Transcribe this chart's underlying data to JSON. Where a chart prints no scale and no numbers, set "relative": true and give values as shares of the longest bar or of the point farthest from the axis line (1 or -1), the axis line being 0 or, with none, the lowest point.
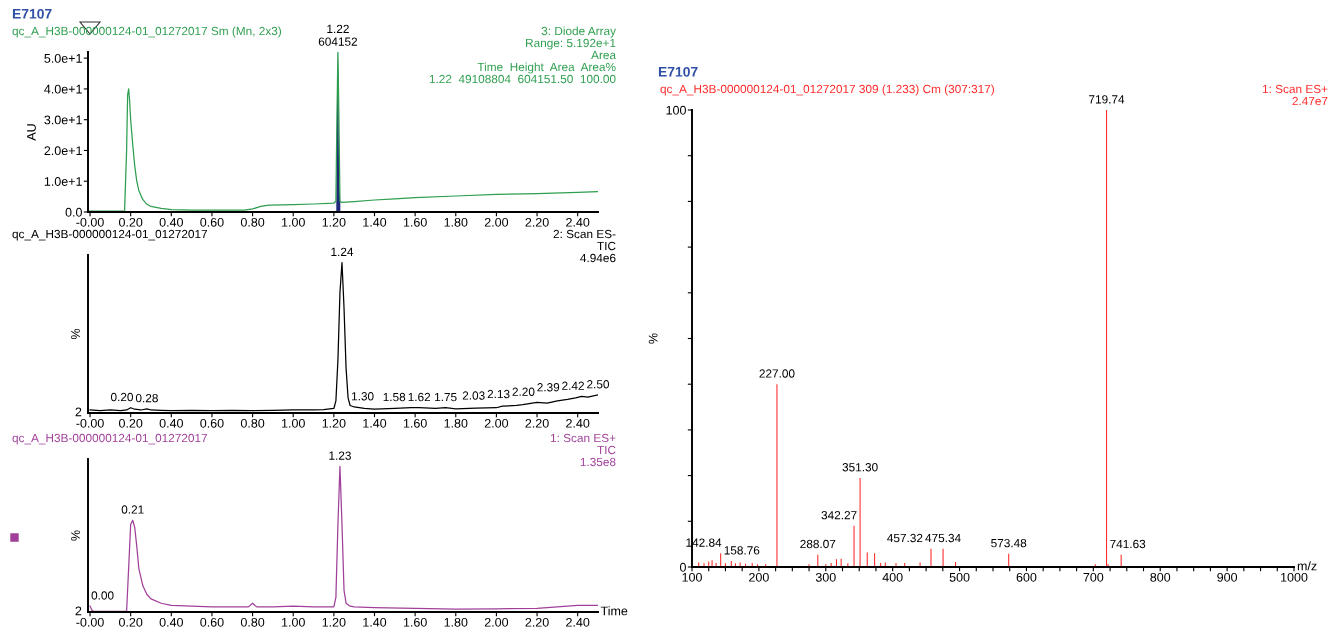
{
  "chart_data": [
    {
      "type": "line",
      "title": "E7107",
      "subtitle": "qc_A_H3B-000000124-01_01272017 Sm (Mn, 2x3)",
      "ylabel": "AU",
      "annotations": [
        "3: Diode Array",
        "Range: 5.192e+1",
        "Area",
        "Time  Height  Area  Area%",
        "1.22  49108804  604151.50  100.00",
        {
          "text": "1.22\n604152",
          "x": 1.22,
          "y": 51.9
        }
      ],
      "series": [
        {
          "type": "line",
          "color": "#2e9e4f",
          "x": [
            -0.01,
            0.0,
            0.1,
            0.17,
            0.18,
            0.185,
            0.19,
            0.195,
            0.2,
            0.21,
            0.22,
            0.23,
            0.24,
            0.26,
            0.28,
            0.3,
            0.35,
            0.4,
            0.5,
            0.6,
            0.7,
            0.76,
            0.8,
            0.84,
            0.88,
            0.95,
            1.0,
            1.1,
            1.2,
            1.21,
            1.215,
            1.22,
            1.225,
            1.23,
            1.24,
            1.3,
            1.4,
            1.5,
            1.6,
            1.8,
            2.0,
            2.2,
            2.4,
            2.5
          ],
          "values": [
            0.3,
            0.3,
            0.3,
            0.3,
            20,
            38,
            40,
            36,
            30,
            22,
            15,
            10,
            7,
            4,
            2.5,
            1.8,
            1.2,
            0.8,
            0.6,
            0.6,
            0.6,
            0.6,
            1.0,
            1.8,
            2.2,
            2.3,
            2.4,
            2.6,
            2.9,
            3.5,
            30,
            51.9,
            30,
            3.5,
            3.1,
            3.4,
            3.9,
            4.3,
            4.7,
            5.2,
            5.7,
            6.0,
            6.4,
            6.6
          ]
        },
        {
          "type": "area",
          "color": "#1f2a7a",
          "x": [
            1.212,
            1.216,
            1.22,
            1.222,
            1.226,
            1.232
          ],
          "values": [
            3,
            35,
            51.9,
            43,
            10,
            3
          ]
        }
      ],
      "xlim": [
        -0.01,
        2.5
      ],
      "ylim": [
        0,
        52
      ],
      "xticks": [
        {
          "value": 0,
          "label": "-0.00"
        },
        {
          "value": 0.2,
          "label": "0.20"
        },
        {
          "value": 0.4,
          "label": "0.40"
        },
        {
          "value": 0.6,
          "label": "0.60"
        },
        {
          "value": 0.8,
          "label": "0.80"
        },
        {
          "value": 1.0,
          "label": "1.00"
        },
        {
          "value": 1.2,
          "label": "1.20"
        },
        {
          "value": 1.4,
          "label": "1.40"
        },
        {
          "value": 1.6,
          "label": "1.60"
        },
        {
          "value": 1.8,
          "label": "1.80"
        },
        {
          "value": 2.0,
          "label": "2.00"
        },
        {
          "value": 2.2,
          "label": "2.20"
        },
        {
          "value": 2.4,
          "label": "2.40"
        }
      ],
      "yticks": [
        {
          "value": 0,
          "label": "0.0"
        },
        {
          "value": 10,
          "label": "1.0e+1"
        },
        {
          "value": 20,
          "label": "2.0e+1"
        },
        {
          "value": 30,
          "label": "3.0e+1"
        },
        {
          "value": 40,
          "label": "4.0e+1"
        },
        {
          "value": 50,
          "label": "5.0e+1"
        }
      ]
    },
    {
      "type": "line",
      "relative": true,
      "subtitle": "qc_A_H3B-000000124-01_01272017",
      "ylabel": "%",
      "annotations": [
        "2: Scan ES-",
        "TIC",
        "4.94e6",
        "2",
        {
          "text": "0.20",
          "x": 0.2,
          "y": 0.035
        },
        {
          "text": "0.28",
          "x": 0.28,
          "y": 0.028
        },
        {
          "text": "1.24",
          "x": 1.24,
          "y": 1.0
        },
        {
          "text": "1.30",
          "x": 1.3,
          "y": 0.04
        },
        {
          "text": "1.58",
          "x": 1.58,
          "y": 0.035
        },
        {
          "text": "1.62",
          "x": 1.62,
          "y": 0.035
        },
        {
          "text": "1.75",
          "x": 1.75,
          "y": 0.035
        },
        {
          "text": "2.03",
          "x": 2.03,
          "y": 0.045
        },
        {
          "text": "2.13",
          "x": 2.13,
          "y": 0.055
        },
        {
          "text": "2.20",
          "x": 2.2,
          "y": 0.07
        },
        {
          "text": "2.39",
          "x": 2.39,
          "y": 0.1
        },
        {
          "text": "2.42",
          "x": 2.42,
          "y": 0.11
        },
        {
          "text": "2.50",
          "x": 2.5,
          "y": 0.12
        }
      ],
      "series": [
        {
          "color": "#000000",
          "x": [
            0,
            0.05,
            0.1,
            0.15,
            0.18,
            0.2,
            0.22,
            0.25,
            0.28,
            0.3,
            0.35,
            0.4,
            0.5,
            0.6,
            0.7,
            0.8,
            0.9,
            1.0,
            1.1,
            1.15,
            1.2,
            1.21,
            1.22,
            1.23,
            1.24,
            1.25,
            1.26,
            1.27,
            1.28,
            1.3,
            1.35,
            1.4,
            1.5,
            1.58,
            1.62,
            1.7,
            1.75,
            1.8,
            1.9,
            2.0,
            2.03,
            2.1,
            2.13,
            2.2,
            2.25,
            2.3,
            2.35,
            2.39,
            2.42,
            2.45,
            2.5
          ],
          "values": [
            0.02,
            0.015,
            0.02,
            0.015,
            0.02,
            0.035,
            0.025,
            0.02,
            0.028,
            0.02,
            0.018,
            0.015,
            0.017,
            0.015,
            0.017,
            0.016,
            0.018,
            0.02,
            0.02,
            0.022,
            0.03,
            0.08,
            0.35,
            0.8,
            1.0,
            0.7,
            0.3,
            0.1,
            0.05,
            0.04,
            0.03,
            0.025,
            0.03,
            0.035,
            0.035,
            0.03,
            0.035,
            0.028,
            0.032,
            0.035,
            0.045,
            0.05,
            0.055,
            0.07,
            0.065,
            0.08,
            0.09,
            0.1,
            0.11,
            0.105,
            0.12
          ]
        }
      ],
      "xlim": [
        -0.01,
        2.5
      ],
      "xticks": [
        {
          "value": 0,
          "label": "-0.00"
        },
        {
          "value": 0.2,
          "label": "0.20"
        },
        {
          "value": 0.4,
          "label": "0.40"
        },
        {
          "value": 0.6,
          "label": "0.60"
        },
        {
          "value": 0.8,
          "label": "0.80"
        },
        {
          "value": 1.0,
          "label": "1.00"
        },
        {
          "value": 1.2,
          "label": "1.20"
        },
        {
          "value": 1.4,
          "label": "1.40"
        },
        {
          "value": 1.6,
          "label": "1.60"
        },
        {
          "value": 1.8,
          "label": "1.80"
        },
        {
          "value": 2.0,
          "label": "2.00"
        },
        {
          "value": 2.2,
          "label": "2.20"
        },
        {
          "value": 2.4,
          "label": "2.40"
        }
      ]
    },
    {
      "type": "line",
      "relative": true,
      "subtitle": "qc_A_H3B-000000124-01_01272017",
      "ylabel": "%",
      "xlabel": "Time",
      "annotations": [
        "1: Scan ES+",
        "TIC",
        "1.35e8",
        "2",
        {
          "text": "0.00",
          "x": 0.0,
          "y": 0.04
        },
        {
          "text": "0.21",
          "x": 0.21,
          "y": 0.63
        },
        {
          "text": "1.23",
          "x": 1.23,
          "y": 1.0
        }
      ],
      "series": [
        {
          "color": "#a0409a",
          "x": [
            0,
            0.01,
            0.02,
            0.1,
            0.18,
            0.19,
            0.2,
            0.21,
            0.22,
            0.23,
            0.24,
            0.26,
            0.28,
            0.3,
            0.35,
            0.4,
            0.5,
            0.6,
            0.7,
            0.78,
            0.8,
            0.82,
            0.9,
            1.0,
            1.1,
            1.2,
            1.21,
            1.22,
            1.23,
            1.24,
            1.25,
            1.26,
            1.28,
            1.3,
            1.4,
            1.6,
            1.8,
            2.0,
            2.2,
            2.3,
            2.4,
            2.5
          ],
          "values": [
            0.04,
            0.01,
            0.005,
            0.005,
            0.005,
            0.3,
            0.6,
            0.63,
            0.58,
            0.45,
            0.3,
            0.18,
            0.12,
            0.09,
            0.06,
            0.045,
            0.04,
            0.035,
            0.035,
            0.035,
            0.06,
            0.035,
            0.035,
            0.04,
            0.035,
            0.035,
            0.1,
            0.6,
            1.0,
            0.6,
            0.15,
            0.06,
            0.04,
            0.035,
            0.03,
            0.025,
            0.02,
            0.022,
            0.025,
            0.035,
            0.045,
            0.045
          ]
        }
      ],
      "xlim": [
        -0.01,
        2.5
      ],
      "xticks": [
        {
          "value": 0,
          "label": "-0.00"
        },
        {
          "value": 0.2,
          "label": "0.20"
        },
        {
          "value": 0.4,
          "label": "0.40"
        },
        {
          "value": 0.6,
          "label": "0.60"
        },
        {
          "value": 0.8,
          "label": "0.80"
        },
        {
          "value": 1.0,
          "label": "1.00"
        },
        {
          "value": 1.2,
          "label": "1.20"
        },
        {
          "value": 1.4,
          "label": "1.40"
        },
        {
          "value": 1.6,
          "label": "1.60"
        },
        {
          "value": 1.8,
          "label": "1.80"
        },
        {
          "value": 2.0,
          "label": "2.00"
        },
        {
          "value": 2.2,
          "label": "2.20"
        },
        {
          "value": 2.4,
          "label": "2.40"
        }
      ]
    },
    {
      "type": "bar",
      "title": "E7107",
      "subtitle": "qc_A_H3B-000000124-01_01272017 309 (1.233) Cm (307:317)",
      "ylabel": "%",
      "xlabel": "m/z",
      "annotations": [
        "1: Scan ES+",
        "2.47e7",
        {
          "text": "142.84",
          "x": 142.84,
          "y": 3.0
        },
        {
          "text": "158.76",
          "x": 158.76,
          "y": 1.3
        },
        {
          "text": "227.00",
          "x": 227.0,
          "y": 40
        },
        {
          "text": "288.07",
          "x": 288.07,
          "y": 2.7
        },
        {
          "text": "342.27",
          "x": 342.27,
          "y": 9.0
        },
        {
          "text": "351.30",
          "x": 351.3,
          "y": 19.5
        },
        {
          "text": "457.32",
          "x": 457.32,
          "y": 4.0
        },
        {
          "text": "475.34",
          "x": 475.34,
          "y": 4.0
        },
        {
          "text": "573.48",
          "x": 573.48,
          "y": 2.9
        },
        {
          "text": "719.74",
          "x": 719.74,
          "y": 100
        },
        {
          "text": "741.63",
          "x": 741.63,
          "y": 2.7
        }
      ],
      "series": [
        {
          "color": "#ff2a2a",
          "x": [
            110,
            118,
            125,
            130,
            136,
            142.84,
            150,
            158.76,
            165,
            172,
            180,
            190,
            198,
            210,
            227.0,
            275,
            288.07,
            300,
            308,
            316,
            323,
            333,
            342.27,
            351.3,
            362,
            373,
            382,
            389,
            405,
            418,
            441,
            457.32,
            475.34,
            494,
            573.48,
            703,
            719.74,
            722,
            741.63
          ],
          "values": [
            1.0,
            0.8,
            1.2,
            1.5,
            0.9,
            3.0,
            0.8,
            1.3,
            0.8,
            1.0,
            0.7,
            0.9,
            0.6,
            0.6,
            40,
            0.6,
            2.7,
            0.6,
            0.9,
            1.7,
            1.8,
            0.8,
            9.0,
            19.5,
            3.2,
            3.0,
            0.9,
            1.0,
            0.8,
            0.9,
            1.0,
            4.0,
            4.0,
            1.1,
            2.9,
            0.6,
            100,
            0.6,
            2.7
          ]
        }
      ],
      "xlim": [
        100,
        1000
      ],
      "ylim": [
        0,
        100
      ],
      "xticks": [
        100,
        {
          "value": 125,
          "label": null
        },
        {
          "value": 150,
          "label": null
        },
        {
          "value": 175,
          "label": null
        },
        200,
        {
          "value": 225,
          "label": null
        },
        {
          "value": 250,
          "label": null
        },
        {
          "value": 275,
          "label": null
        },
        300,
        {
          "value": 325,
          "label": null
        },
        {
          "value": 350,
          "label": null
        },
        {
          "value": 375,
          "label": null
        },
        400,
        {
          "value": 425,
          "label": null
        },
        {
          "value": 450,
          "label": null
        },
        {
          "value": 475,
          "label": null
        },
        500,
        {
          "value": 525,
          "label": null
        },
        {
          "value": 550,
          "label": null
        },
        {
          "value": 575,
          "label": null
        },
        600,
        {
          "value": 625,
          "label": null
        },
        {
          "value": 650,
          "label": null
        },
        {
          "value": 675,
          "label": null
        },
        700,
        {
          "value": 725,
          "label": null
        },
        {
          "value": 750,
          "label": null
        },
        {
          "value": 775,
          "label": null
        },
        800,
        {
          "value": 825,
          "label": null
        },
        {
          "value": 850,
          "label": null
        },
        {
          "value": 875,
          "label": null
        },
        900,
        {
          "value": 925,
          "label": null
        },
        {
          "value": 950,
          "label": null
        },
        {
          "value": 975,
          "label": null
        },
        1000
      ],
      "yticks": [
        0,
        {
          "value": 10,
          "label": null
        },
        {
          "value": 20,
          "label": null
        },
        {
          "value": 30,
          "label": null
        },
        {
          "value": 40,
          "label": null
        },
        {
          "value": 50,
          "label": null
        },
        {
          "value": 60,
          "label": null
        },
        {
          "value": 70,
          "label": null
        },
        {
          "value": 80,
          "label": null
        },
        {
          "value": 90,
          "label": null
        },
        100
      ]
    }
  ]
}
